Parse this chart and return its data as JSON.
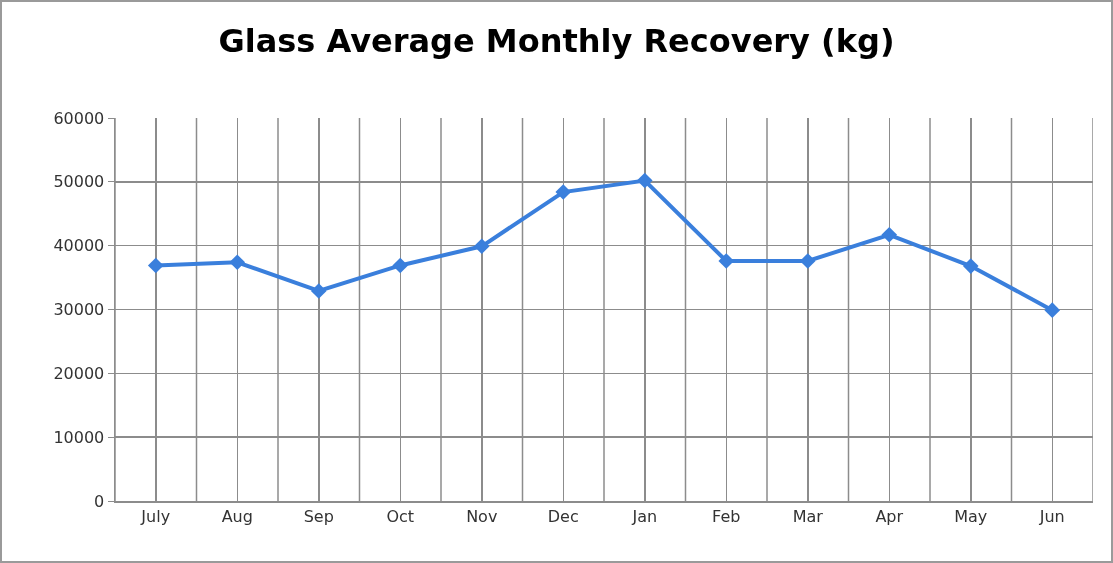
{
  "chart_data": {
    "type": "line",
    "title": "Glass Average Monthly Recovery (kg)",
    "categories": [
      "July",
      "Aug",
      "Sep",
      "Oct",
      "Nov",
      "Dec",
      "Jan",
      "Feb",
      "Mar",
      "Apr",
      "May",
      "Jun"
    ],
    "series": [
      {
        "color": "#3a7fdc",
        "values": [
          36900,
          37400,
          32900,
          36900,
          39900,
          48400,
          50200,
          37600,
          37600,
          41700,
          36800,
          29900
        ]
      }
    ],
    "ylim": [
      0,
      60000
    ],
    "yticks": [
      0,
      10000,
      20000,
      30000,
      40000,
      50000,
      60000
    ],
    "grid": true,
    "marker": "diamond",
    "line_style": "solid"
  }
}
